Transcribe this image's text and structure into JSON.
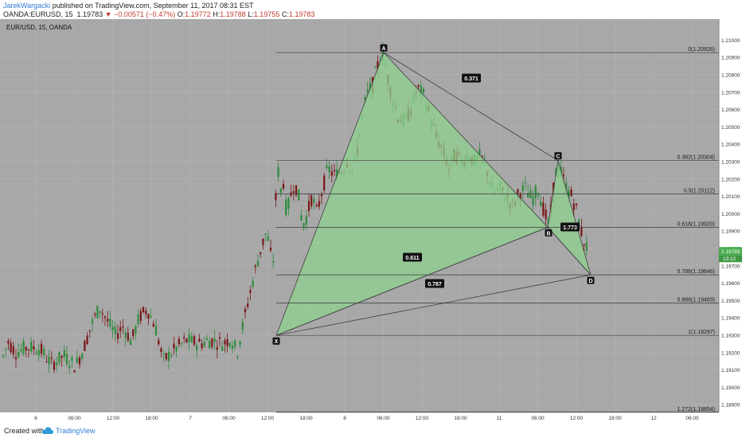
{
  "header": {
    "author": "JarekWargacki",
    "published": "published on TradingView.com, September 11, 2017 08:31 EST",
    "symbol": "OANDA:EURUSD, 15",
    "last": "1.19783",
    "change": "−0.00571 (−0.47%)",
    "o_label": "O:",
    "o": "1.19772",
    "h_label": "H:",
    "h": "1.19788",
    "l_label": "L:",
    "l": "1.19755",
    "c_label": "C:",
    "c": "1.19783"
  },
  "chart_title": "EUR/USD, 15, OANDA",
  "footer": {
    "created": "Created with",
    "brand": "TradingView"
  },
  "colors": {
    "background": "#a8a8a8",
    "up": "#2e8b3c",
    "down": "#7a1515",
    "pattern_fill": "#8fd08f",
    "price_tag": "#4caf50"
  },
  "chart_data": {
    "type": "candlestick",
    "title": "EUR/USD, 15, OANDA",
    "ylim": [
      1.1883,
      1.2108
    ],
    "price_ticks": [
      "1.21000",
      "1.20900",
      "1.20800",
      "1.20700",
      "1.20600",
      "1.20500",
      "1.20400",
      "1.20300",
      "1.20200",
      "1.20100",
      "1.20000",
      "1.19900",
      "1.19800",
      "1.19700",
      "1.19600",
      "1.19500",
      "1.19400",
      "1.19300",
      "1.19200",
      "1.19100",
      "1.19000",
      "1.18900"
    ],
    "time_ticks": [
      "6",
      "06:00",
      "12:00",
      "18:00",
      "7",
      "06:00",
      "12:00",
      "18:00",
      "8",
      "06:00",
      "12:00",
      "18:00",
      "11",
      "06:00",
      "12:00",
      "18:00",
      "12",
      "06:00"
    ],
    "current_price": "1.19783",
    "countdown": "13:12",
    "fib_levels": [
      {
        "ratio": "0",
        "price": 1.20926,
        "label": "0(1.20926)"
      },
      {
        "ratio": "0.382",
        "price": 1.20304,
        "label": "0.382(1.20304)"
      },
      {
        "ratio": "0.5",
        "price": 1.20112,
        "label": "0.5(1.20112)"
      },
      {
        "ratio": "0.618",
        "price": 1.1992,
        "label": "0.618(1.19920)"
      },
      {
        "ratio": "0.786",
        "price": 1.19646,
        "label": "0.786(1.19646)"
      },
      {
        "ratio": "0.886",
        "price": 1.19483,
        "label": "0.886(1.19483)"
      },
      {
        "ratio": "1",
        "price": 1.19297,
        "label": "1(1.19297)"
      },
      {
        "ratio": "1.272",
        "price": 1.18854,
        "label": "1.272(1.18854)"
      }
    ],
    "pattern_points": [
      {
        "name": "X",
        "time": "7 12:30",
        "price": 1.19297
      },
      {
        "name": "A",
        "time": "8 06:00",
        "price": 1.20926
      },
      {
        "name": "B",
        "time": "11 06:30",
        "price": 1.1992
      },
      {
        "name": "C",
        "time": "11 09:00",
        "price": 1.20304
      },
      {
        "name": "D",
        "time": "11 12:30",
        "price": 1.19646
      }
    ],
    "pattern_ratios": [
      {
        "label": "0.371",
        "between": "A-C"
      },
      {
        "label": "0.611",
        "between": "X-B"
      },
      {
        "label": "1.773",
        "between": "B-D"
      },
      {
        "label": "0.787",
        "between": "X-D"
      }
    ],
    "price_path": [
      [
        0,
        1.1912
      ],
      [
        10,
        1.1926
      ],
      [
        20,
        1.192
      ],
      [
        35,
        1.1923
      ],
      [
        50,
        1.1922
      ],
      [
        65,
        1.1913
      ],
      [
        80,
        1.1918
      ],
      [
        95,
        1.1912
      ],
      [
        105,
        1.1922
      ],
      [
        115,
        1.1936
      ],
      [
        125,
        1.1946
      ],
      [
        135,
        1.1938
      ],
      [
        145,
        1.193
      ],
      [
        155,
        1.1935
      ],
      [
        165,
        1.1926
      ],
      [
        175,
        1.194
      ],
      [
        185,
        1.1945
      ],
      [
        195,
        1.1935
      ],
      [
        205,
        1.1915
      ],
      [
        220,
        1.1922
      ],
      [
        235,
        1.1927
      ],
      [
        250,
        1.1925
      ],
      [
        265,
        1.1927
      ],
      [
        280,
        1.1925
      ],
      [
        290,
        1.1928
      ],
      [
        298,
        1.192
      ],
      [
        305,
        1.1935
      ],
      [
        312,
        1.195
      ],
      [
        320,
        1.1966
      ],
      [
        328,
        1.198
      ],
      [
        335,
        1.199
      ],
      [
        340,
        1.1976
      ],
      [
        344,
        1.1973
      ],
      [
        348,
        1.2032
      ],
      [
        352,
        1.2012
      ],
      [
        356,
        1.2018
      ],
      [
        360,
        1.2
      ],
      [
        365,
        1.201
      ],
      [
        370,
        1.2018
      ],
      [
        375,
        1.201
      ],
      [
        380,
        1.1993
      ],
      [
        385,
        1.1998
      ],
      [
        392,
        1.201
      ],
      [
        398,
        1.2
      ],
      [
        405,
        1.2014
      ],
      [
        412,
        1.2026
      ],
      [
        420,
        1.2022
      ],
      [
        428,
        1.2024
      ],
      [
        436,
        1.203
      ],
      [
        444,
        1.2024
      ],
      [
        452,
        1.2046
      ],
      [
        460,
        1.2068
      ],
      [
        468,
        1.2074
      ],
      [
        476,
        1.2088
      ],
      [
        481,
        1.2092
      ],
      [
        486,
        1.208
      ],
      [
        492,
        1.2068
      ],
      [
        500,
        1.2056
      ],
      [
        508,
        1.2052
      ],
      [
        516,
        1.206
      ],
      [
        524,
        1.2072
      ],
      [
        532,
        1.2068
      ],
      [
        540,
        1.2056
      ],
      [
        548,
        1.2044
      ],
      [
        556,
        1.2036
      ],
      [
        564,
        1.2026
      ],
      [
        572,
        1.2034
      ],
      [
        580,
        1.203
      ],
      [
        588,
        1.2034
      ],
      [
        596,
        1.203
      ],
      [
        604,
        1.2033
      ],
      [
        612,
        1.2024
      ],
      [
        620,
        1.2012
      ],
      [
        628,
        1.2014
      ],
      [
        636,
        1.201
      ],
      [
        644,
        1.2004
      ],
      [
        652,
        1.2012
      ],
      [
        660,
        1.2014
      ],
      [
        668,
        1.2008
      ],
      [
        676,
        1.2014
      ],
      [
        684,
        1.2
      ],
      [
        690,
        1.1992
      ],
      [
        695,
        1.2014
      ],
      [
        700,
        1.2028
      ],
      [
        706,
        1.2022
      ],
      [
        712,
        1.2014
      ],
      [
        718,
        1.201
      ],
      [
        724,
        1.2002
      ],
      [
        730,
        1.199
      ],
      [
        735,
        1.1982
      ],
      [
        740,
        1.1978
      ]
    ]
  }
}
